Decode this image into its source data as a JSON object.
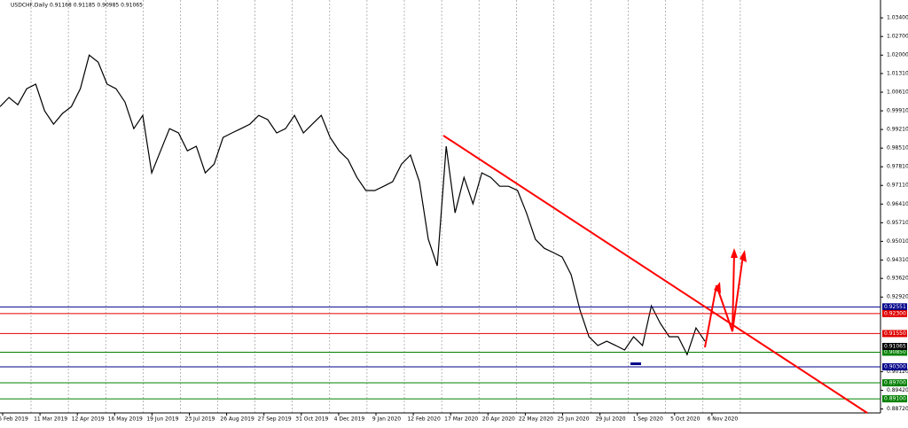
{
  "chart_data": {
    "type": "line",
    "title": "USDCHF,Daily  0.91168 0.91185 0.90985 0.91065",
    "color": "#000000",
    "ylim": [
      0.8857,
      1.0407
    ],
    "yticks": [
      {
        "value": 1.034,
        "label": "1.03400"
      },
      {
        "value": 1.027,
        "label": "1.02700"
      },
      {
        "value": 1.02,
        "label": "1.02000"
      },
      {
        "value": 1.0131,
        "label": "1.01310"
      },
      {
        "value": 1.0061,
        "label": "1.00610"
      },
      {
        "value": 0.9991,
        "label": "0.99910"
      },
      {
        "value": 0.9921,
        "label": "0.99210"
      },
      {
        "value": 0.9851,
        "label": "0.98510"
      },
      {
        "value": 0.9781,
        "label": "0.97810"
      },
      {
        "value": 0.9711,
        "label": "0.97110"
      },
      {
        "value": 0.9641,
        "label": "0.96410"
      },
      {
        "value": 0.9571,
        "label": "0.95710"
      },
      {
        "value": 0.9501,
        "label": "0.95010"
      },
      {
        "value": 0.9431,
        "label": "0.94310"
      },
      {
        "value": 0.9362,
        "label": "0.93620"
      },
      {
        "value": 0.9292,
        "label": "0.92920"
      },
      {
        "value": 0.9012,
        "label": "0.90120"
      },
      {
        "value": 0.8942,
        "label": "0.89420"
      },
      {
        "value": 0.8872,
        "label": "0.88720"
      }
    ],
    "x_labels": [
      "5 Feb 2019",
      "11 Mar 2019",
      "12 Apr 2019",
      "16 May 2019",
      "19 Jun 2019",
      "23 Jul 2019",
      "26 Aug 2019",
      "27 Sep 2019",
      "31 Oct 2019",
      "4 Dec 2019",
      "9 Jan 2020",
      "12 Feb 2020",
      "17 Mar 2020",
      "20 Apr 2020",
      "22 May 2020",
      "25 Jun 2020",
      "29 Jul 2020",
      "1 Sep 2020",
      "5 Oct 2020",
      "6 Nov 2020"
    ],
    "values": [
      1.0007,
      1.0041,
      1.0014,
      1.0074,
      1.0091,
      0.9991,
      0.9941,
      0.9981,
      1.0007,
      1.0074,
      1.02,
      1.0174,
      1.0091,
      1.0074,
      1.0024,
      0.9924,
      0.9974,
      0.9758,
      0.9841,
      0.9924,
      0.9908,
      0.9841,
      0.9858,
      0.9758,
      0.9791,
      0.9891,
      0.9908,
      0.9924,
      0.9941,
      0.9974,
      0.9958,
      0.9908,
      0.9924,
      0.9974,
      0.9908,
      0.9941,
      0.9974,
      0.9891,
      0.9841,
      0.9808,
      0.9741,
      0.9692,
      0.9692,
      0.9708,
      0.9725,
      0.9791,
      0.9825,
      0.9725,
      0.9509,
      0.9409,
      0.9858,
      0.9608,
      0.9741,
      0.9642,
      0.9758,
      0.9741,
      0.9708,
      0.9708,
      0.9692,
      0.9608,
      0.9509,
      0.9475,
      0.9459,
      0.9442,
      0.9376,
      0.9243,
      0.9143,
      0.911,
      0.9126,
      0.911,
      0.9093,
      0.9143,
      0.911,
      0.9259,
      0.9193,
      0.9143,
      0.9143,
      0.9076,
      0.9176,
      0.9126
    ],
    "levels": [
      {
        "value": 0.92551,
        "label": "0.92551",
        "color": "#00008b"
      },
      {
        "value": 0.923,
        "label": "0.92300",
        "color": "#e00000"
      },
      {
        "value": 0.9155,
        "label": "0.91550",
        "color": "#e00000"
      },
      {
        "value": 0.9085,
        "label": "0.90850",
        "color": "#008000"
      },
      {
        "value": 0.903,
        "label": "0.90300",
        "color": "#00008b"
      },
      {
        "value": 0.897,
        "label": "0.89700",
        "color": "#008000"
      },
      {
        "value": 0.891,
        "label": "0.89100",
        "color": "#008000"
      }
    ],
    "current_price": {
      "value": 0.91065,
      "label": "0.91065",
      "color": "#000000"
    }
  }
}
